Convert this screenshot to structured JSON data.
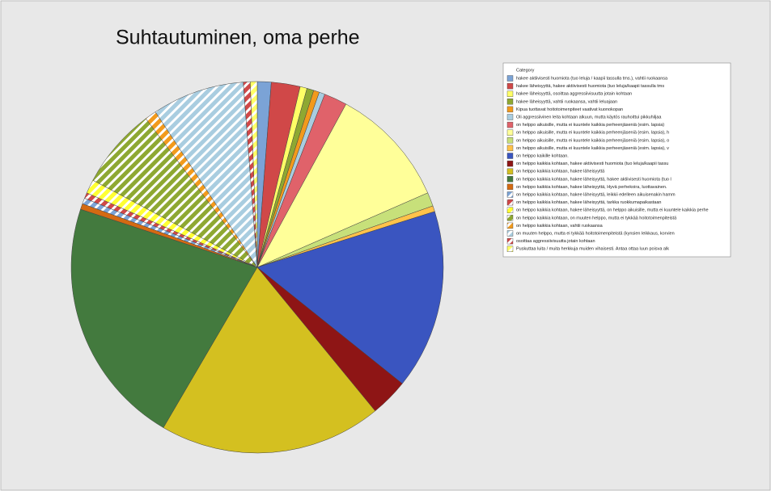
{
  "chart_data": {
    "type": "pie",
    "title": "Suhtautuminen, oma perhe",
    "legend_title": "Category",
    "categories": [
      "hakee aktiivisesti huomiota (tuo leluja / kaapii tassulla tms.), vahtii ruokaansa",
      "hakee läheisyyttä, hakee aktiivisesti huomiota (tuo leluja/kaapii tassulla tms",
      "hakee läheisyyttä, osoittaa aggressiivisuutta jotain kohtaan",
      "hakee läheisyyttä, vahtii ruokaansa, vahtii leluajaan",
      "Kipua tuottavat hoitotoimenpiteet vaativat kuonokopan",
      "Oli aggressiivinen leita kohtaan alkuun, mutta käytös rauhoittui pikkuhiljaa",
      "on helppo aikuisille, mutta ei kuuntele kaikkia perheenjäseniä (esim. lapsia)",
      "on helppo aikuisille, mutta ei kuuntele kaikkia perheenjäseniä (esim. lapsia), h",
      "on helppo aikuisille, mutta ei kuuntele kaikkia perheenjäseniä (esim. lapsia), o",
      "on helppo aikuisille, mutta ei kuuntele kaikkia perheenjäseniä (esim. lapsia), v",
      "on helppo kaikille kohtaan.",
      "on helppo kaikkia kohtaan, hakee aktiivisesti huomiota (tuo leluja/kaapii tassu",
      "on helppo kaikkia kohtaan, hakee läheisyyttä",
      "on helppo kaikkia kohtaan, hakee läheisyyttä, hakee aktiivisesti huomiota (tuo l",
      "on helppo kaikkia kohtaan, hakee läheisyyttä, Hyvä perhekoira, luottavainen.",
      "on helppo kaikkia kohtaan, hakee läheisyyttä, leikkii edelleen aikuisenakin hamm",
      "on helppo kaikkia kohtaan, hakee läheisyyttä, tarkka ruokkumapaikastaan",
      "on helppo kaikkia kohtaan, hakee läheisyyttä, on helppo aikuisille, mutta ei kuuntele kaikkia perhe",
      "on helppo kaikkia kohtaan, on muuten helppo, mutta ei tykkää hoitotoimenpiteistä",
      "on helppo kaikkia kohtaan, vahtii ruokaansa",
      "on muuten helppo, mutta ei tykkää hoitotoimenpiteistä (kynsien leikkaus, korvien",
      "osoittaa aggressiivisuutta jotain kohtaan",
      "Puskuttaa luita / muita herkkuja muiden vihaisesti. Antaa ottaa luun poisva alk"
    ],
    "values": [
      1.2,
      2.5,
      0.6,
      0.6,
      0.5,
      0.5,
      2,
      10.5,
      1.2,
      0.5,
      15.6,
      3.3,
      19.3,
      21.6,
      0.5,
      0.5,
      0.5,
      1.2,
      7,
      1,
      8,
      0.6,
      0.6
    ],
    "colors": [
      "#7ba3d6",
      "#d04848",
      "#ffff66",
      "#8ea832",
      "#f29a1c",
      "#a9cde0",
      "#e0626a",
      "#ffff99",
      "#c7e07a",
      "#ffc24a",
      "#3a55c0",
      "#8e1515",
      "#d4c020",
      "#437a3e",
      "#d46a12",
      "#7ba3d6",
      "#d04848",
      "#ffff33",
      "#8ea832",
      "#f29a1c",
      "#a9cde0",
      "#d04848",
      "#ffff66"
    ],
    "hatched": [
      false,
      false,
      false,
      false,
      false,
      false,
      false,
      false,
      false,
      false,
      false,
      false,
      false,
      false,
      false,
      true,
      true,
      true,
      true,
      true,
      true,
      true,
      true
    ]
  }
}
